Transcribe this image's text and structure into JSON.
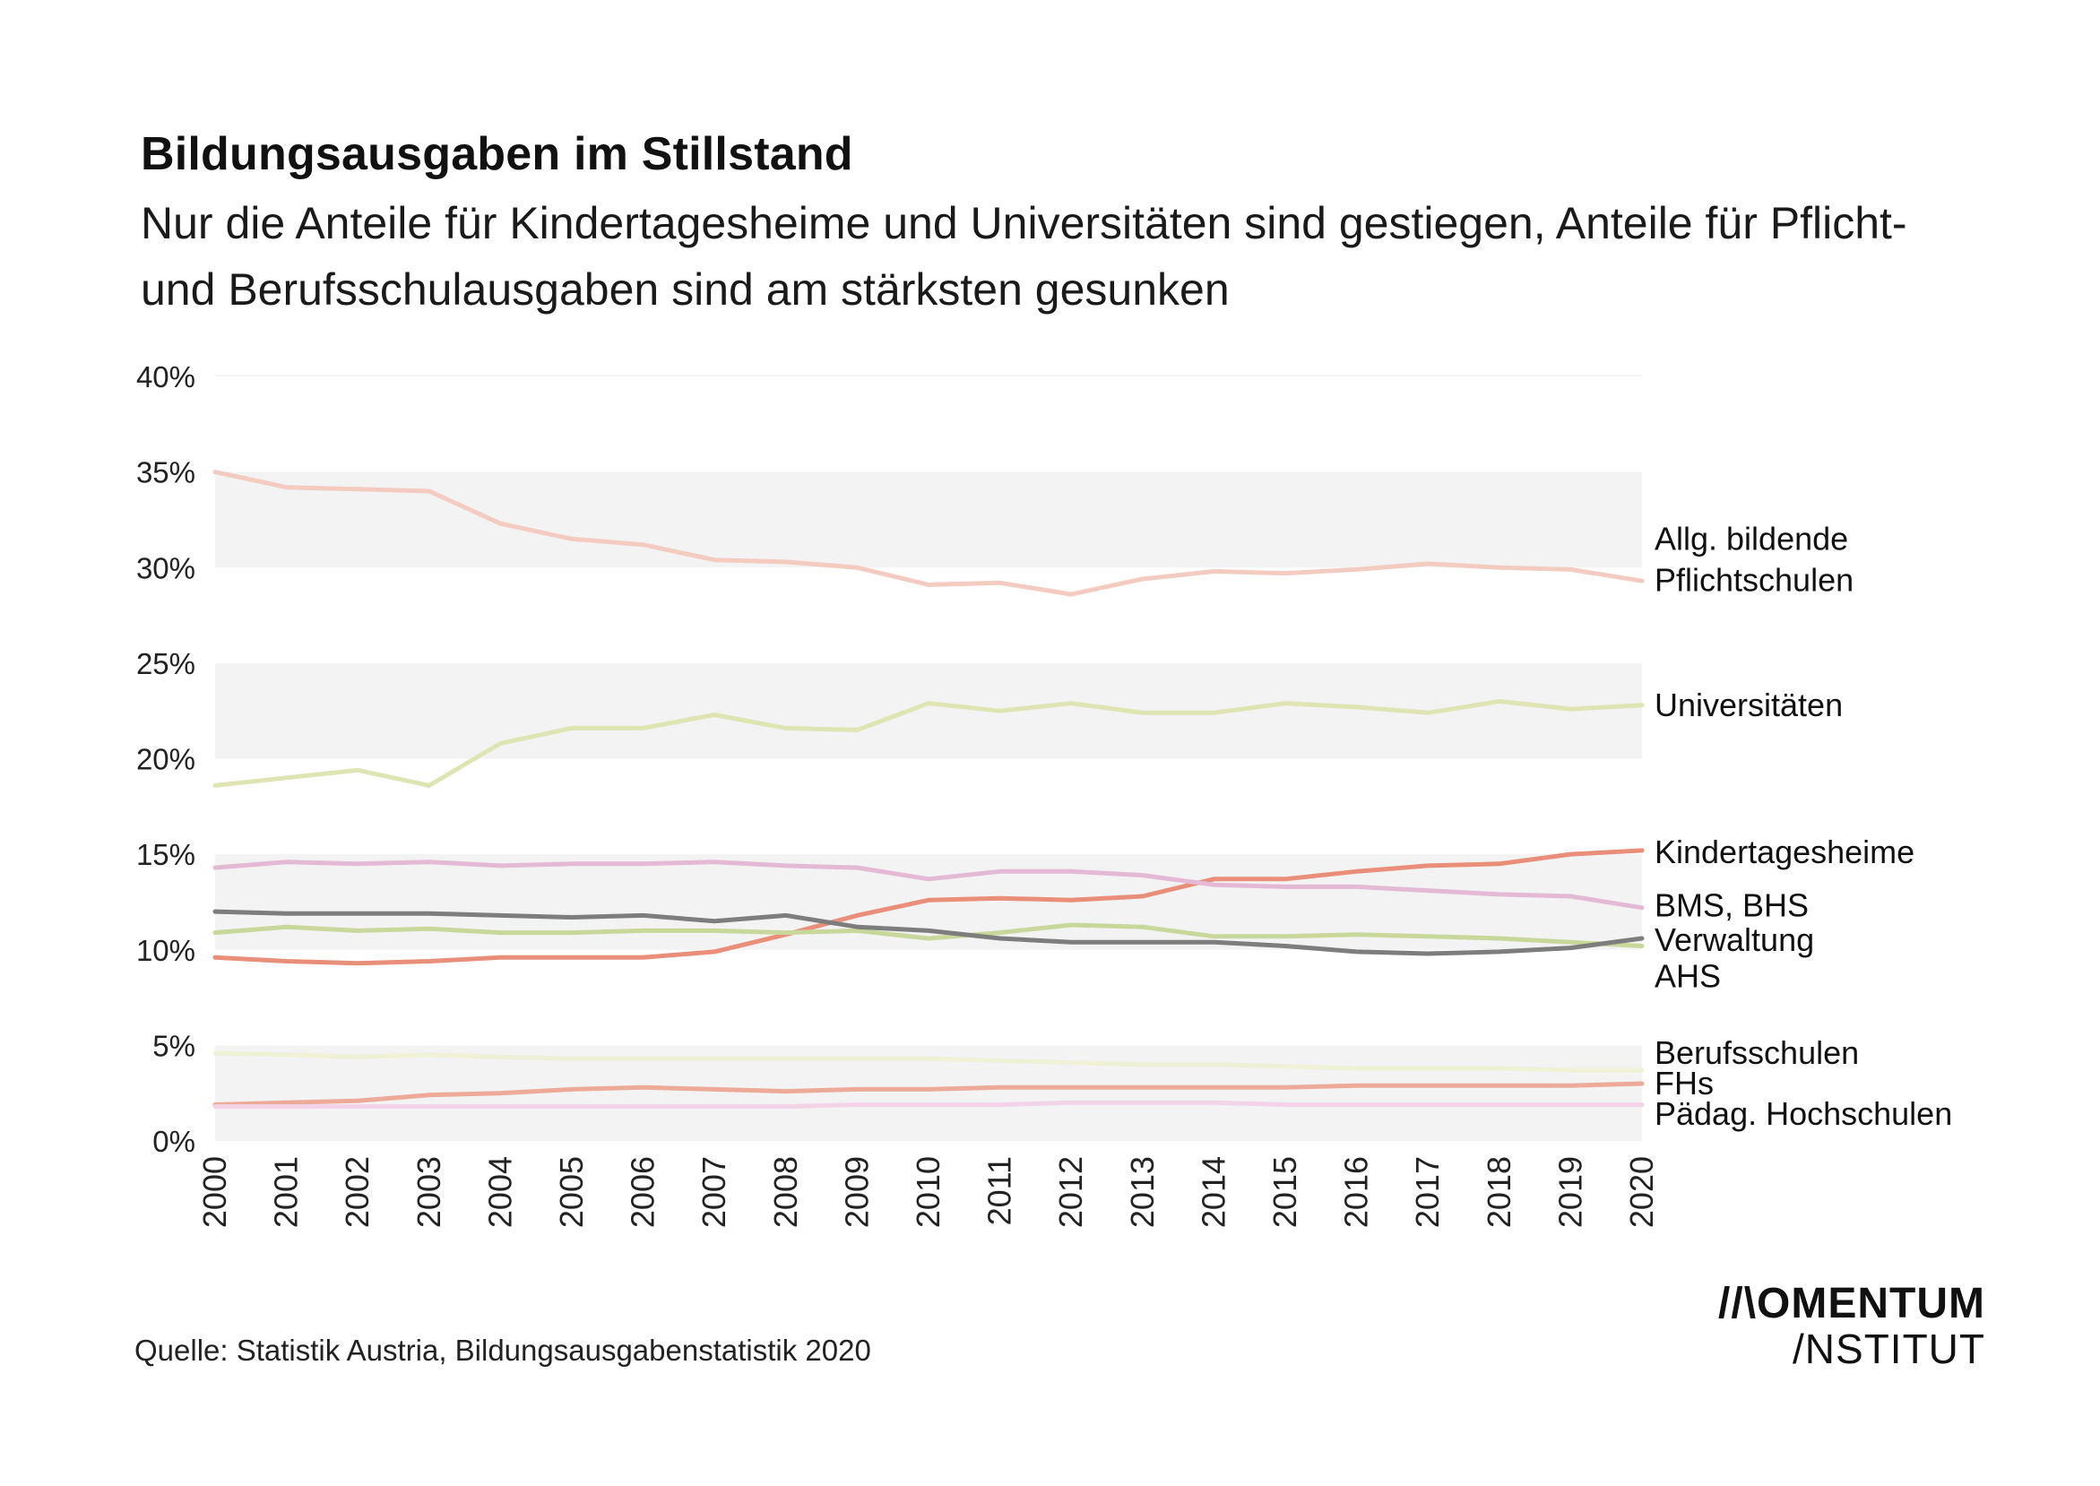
{
  "header": {
    "title": "Bildungsausgaben im Stillstand",
    "subtitle": "Nur die Anteile für Kindertagesheime und Universitäten sind gestiegen, Anteile für Pflicht- und Berufsschulausgaben sind am stärksten gesunken"
  },
  "footer": {
    "source": "Quelle: Statistik Austria, Bildungsausgabenstatistik 2020",
    "logo_line1": "//\\OMENTUM",
    "logo_line2": "/NSTITUT"
  },
  "chart_data": {
    "type": "line",
    "title": "Bildungsausgaben im Stillstand",
    "subtitle": "Nur die Anteile für Kindertagesheime und Universitäten sind gestiegen, Anteile für Pflicht- und Berufsschulausgaben sind am stärksten gesunken",
    "xlabel": "",
    "ylabel": "",
    "ylim": [
      0,
      40
    ],
    "yticks": [
      0,
      5,
      10,
      15,
      20,
      25,
      30,
      35,
      40
    ],
    "ytick_labels": [
      "0%",
      "5%",
      "10%",
      "15%",
      "20%",
      "25%",
      "30%",
      "35%",
      "40%"
    ],
    "x": [
      "2000",
      "2001",
      "2002",
      "2003",
      "2004",
      "2005",
      "2006",
      "2007",
      "2008",
      "2009",
      "2010",
      "2011",
      "2012",
      "2013",
      "2014",
      "2015",
      "2016",
      "2017",
      "2018",
      "2019",
      "2020"
    ],
    "legend_placement": "right, labels at line ends",
    "grid": "alternating horizontal bands",
    "series": [
      {
        "name": "Allg. bildende Pflichtschulen",
        "color": "#f4cbc1",
        "values": [
          35.0,
          34.2,
          34.1,
          34.0,
          32.3,
          31.5,
          31.2,
          30.4,
          30.3,
          30.0,
          29.1,
          29.2,
          28.6,
          29.4,
          29.8,
          29.7,
          29.9,
          30.2,
          30.0,
          29.9,
          29.3
        ]
      },
      {
        "name": "Universitäten",
        "color": "#dfe5b2",
        "values": [
          18.6,
          19.0,
          19.4,
          18.6,
          20.8,
          21.6,
          21.6,
          22.3,
          21.6,
          21.5,
          22.9,
          22.5,
          22.9,
          22.4,
          22.4,
          22.9,
          22.7,
          22.4,
          23.0,
          22.6,
          22.8
        ]
      },
      {
        "name": "Kindertagesheime",
        "color": "#e88e79",
        "values": [
          9.6,
          9.4,
          9.3,
          9.4,
          9.6,
          9.6,
          9.6,
          9.9,
          10.8,
          11.8,
          12.6,
          12.7,
          12.6,
          12.8,
          13.7,
          13.7,
          14.1,
          14.4,
          14.5,
          15.0,
          15.2
        ]
      },
      {
        "name": "BMS, BHS",
        "color": "#e3b9d5",
        "values": [
          14.3,
          14.6,
          14.5,
          14.6,
          14.4,
          14.5,
          14.5,
          14.6,
          14.4,
          14.3,
          13.7,
          14.1,
          14.1,
          13.9,
          13.4,
          13.3,
          13.3,
          13.1,
          12.9,
          12.8,
          12.2
        ]
      },
      {
        "name": "Verwaltung",
        "color": "#c8d89a",
        "values": [
          10.9,
          11.2,
          11.0,
          11.1,
          10.9,
          10.9,
          11.0,
          11.0,
          10.9,
          11.0,
          10.6,
          10.9,
          11.3,
          11.2,
          10.7,
          10.7,
          10.8,
          10.7,
          10.6,
          10.4,
          10.2
        ]
      },
      {
        "name": "AHS",
        "color": "#7d7d7d",
        "values": [
          12.0,
          11.9,
          11.9,
          11.9,
          11.8,
          11.7,
          11.8,
          11.5,
          11.8,
          11.2,
          11.0,
          10.6,
          10.4,
          10.4,
          10.4,
          10.2,
          9.9,
          9.8,
          9.9,
          10.1,
          10.6
        ]
      },
      {
        "name": "Berufsschulen",
        "color": "#eef1d6",
        "values": [
          4.6,
          4.5,
          4.4,
          4.5,
          4.4,
          4.3,
          4.3,
          4.3,
          4.3,
          4.3,
          4.3,
          4.2,
          4.1,
          4.0,
          4.0,
          3.9,
          3.8,
          3.8,
          3.8,
          3.7,
          3.7
        ]
      },
      {
        "name": "FHs",
        "color": "#eeaa98",
        "values": [
          1.9,
          2.0,
          2.1,
          2.4,
          2.5,
          2.7,
          2.8,
          2.7,
          2.6,
          2.7,
          2.7,
          2.8,
          2.8,
          2.8,
          2.8,
          2.8,
          2.9,
          2.9,
          2.9,
          2.9,
          3.0
        ]
      },
      {
        "name": "Pädag. Hochschulen",
        "color": "#f2d3e8",
        "values": [
          1.8,
          1.8,
          1.8,
          1.8,
          1.8,
          1.8,
          1.8,
          1.8,
          1.8,
          1.9,
          1.9,
          1.9,
          2.0,
          2.0,
          2.0,
          1.9,
          1.9,
          1.9,
          1.9,
          1.9,
          1.9
        ]
      }
    ],
    "legend_labels": [
      {
        "lines": [
          "Allg. bildende",
          "Pflichtschulen"
        ],
        "value": 30.4
      },
      {
        "lines": [
          "Universitäten"
        ],
        "value": 22.8
      },
      {
        "lines": [
          "Kindertagesheime"
        ],
        "value": 15.1
      },
      {
        "lines": [
          "BMS, BHS"
        ],
        "value": 12.3
      },
      {
        "lines": [
          "Verwaltung"
        ],
        "value": 10.5
      },
      {
        "lines": [
          "AHS"
        ],
        "value": 8.6
      },
      {
        "lines": [
          "Berufsschulen"
        ],
        "value": 4.6
      },
      {
        "lines": [
          "FHs"
        ],
        "value": 3.0
      },
      {
        "lines": [
          "Pädag. Hochschulen"
        ],
        "value": 1.4
      }
    ]
  }
}
